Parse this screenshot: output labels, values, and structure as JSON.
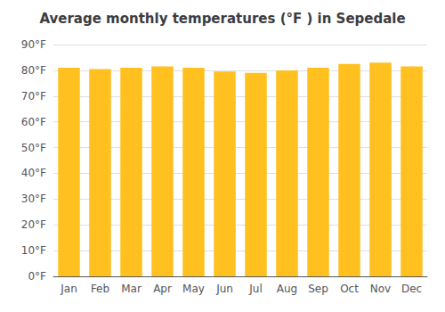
{
  "chart_data": {
    "type": "bar",
    "title": "Average monthly temperatures (°F ) in Sepedale",
    "categories": [
      "Jan",
      "Feb",
      "Mar",
      "Apr",
      "May",
      "Jun",
      "Jul",
      "Aug",
      "Sep",
      "Oct",
      "Nov",
      "Dec"
    ],
    "values": [
      81,
      80.5,
      81,
      81.5,
      81,
      79.5,
      79,
      80,
      81,
      82.5,
      83,
      81.5
    ],
    "color": "#FFC020",
    "ylim": [
      0,
      90
    ],
    "yticks": [
      {
        "value": 0,
        "label": "0°F"
      },
      {
        "value": 10,
        "label": "10°F"
      },
      {
        "value": 20,
        "label": "20°F"
      },
      {
        "value": 30,
        "label": "30°F"
      },
      {
        "value": 40,
        "label": "40°F"
      },
      {
        "value": 50,
        "label": "50°F"
      },
      {
        "value": 60,
        "label": "60°F"
      },
      {
        "value": 70,
        "label": "70°F"
      },
      {
        "value": 80,
        "label": "80°F"
      },
      {
        "value": 90,
        "label": "90°F"
      }
    ],
    "grid": true
  }
}
